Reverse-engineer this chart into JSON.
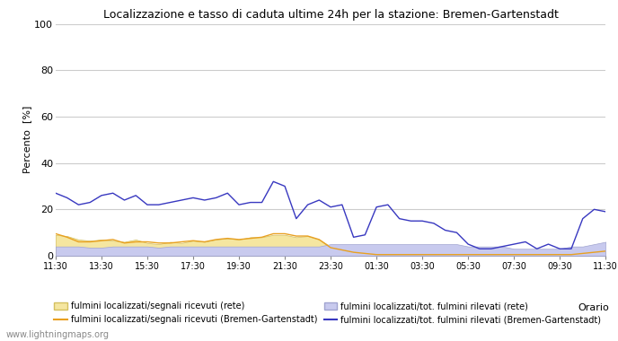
{
  "title": "Localizzazione e tasso di caduta ultime 24h per la stazione: Bremen-Gartenstadt",
  "ylabel": "Percento  [%]",
  "xlabel_right": "Orario",
  "watermark": "www.lightningmaps.org",
  "ylim": [
    0,
    100
  ],
  "yticks": [
    0,
    20,
    40,
    60,
    80,
    100
  ],
  "x_labels": [
    "11:30",
    "13:30",
    "15:30",
    "17:30",
    "19:30",
    "21:30",
    "23:30",
    "01:30",
    "03:30",
    "05:30",
    "07:30",
    "09:30",
    "11:30"
  ],
  "color_fill_rete_segnali": "#f5e6a0",
  "color_fill_rete_fulmini": "#c8caee",
  "color_line_station_segnali": "#e8a020",
  "color_line_station_fulmini": "#3838c0",
  "color_fill_rete_segnali_edge": "#d4c060",
  "color_fill_rete_fulmini_edge": "#a0a4d0",
  "legend_fill_segnali": "fulmini localizzati/segnali ricevuti (rete)",
  "legend_line_segnali": "fulmini localizzati/segnali ricevuti (Bremen-Gartenstadt)",
  "legend_fill_fulmini": "fulmini localizzati/tot. fulmini rilevati (rete)",
  "legend_line_fulmini": "fulmini localizzati/tot. fulmini rilevati (Bremen-Gartenstadt)",
  "x_values": [
    0,
    1,
    2,
    3,
    4,
    5,
    6,
    7,
    8,
    9,
    10,
    11,
    12,
    13,
    14,
    15,
    16,
    17,
    18,
    19,
    20,
    21,
    22,
    23,
    24,
    25,
    26,
    27,
    28,
    29,
    30,
    31,
    32,
    33,
    34,
    35,
    36,
    37,
    38,
    39,
    40,
    41,
    42,
    43,
    44,
    45,
    46,
    47,
    48
  ],
  "y_rete_segnali": [
    9,
    8.5,
    7,
    6.5,
    7,
    6.5,
    6,
    7,
    5.5,
    5,
    6,
    5.5,
    6.5,
    6,
    7,
    7.5,
    7,
    8,
    8,
    9,
    9,
    8,
    8.5,
    7,
    4,
    3,
    2.5,
    2,
    1.5,
    1,
    1,
    1,
    1,
    1,
    1,
    1,
    1,
    1,
    1,
    1,
    0.5,
    0.5,
    0.5,
    0.5,
    0.5,
    1,
    1.5,
    2,
    2
  ],
  "y_rete_fulmini": [
    4,
    4,
    4,
    3.5,
    3.5,
    4,
    4,
    4,
    4,
    3.5,
    4,
    4,
    4,
    4,
    4,
    4,
    4,
    4,
    4,
    4,
    4,
    4,
    4,
    4,
    5,
    5,
    5,
    5,
    5,
    5,
    5,
    5,
    5,
    5,
    5,
    5,
    4,
    4,
    4,
    4,
    3,
    3,
    3,
    3,
    3,
    4,
    4,
    5,
    6
  ],
  "y_station_segnali": [
    9.5,
    8,
    6,
    6,
    6.5,
    7,
    5.5,
    6,
    6,
    5.5,
    5.5,
    6,
    6.5,
    6,
    7,
    7.5,
    7,
    7.5,
    8,
    9.5,
    9.5,
    8.5,
    8.5,
    7,
    3.5,
    2.5,
    1.5,
    1,
    0.5,
    0.5,
    0.5,
    0.5,
    0.5,
    0.5,
    0.5,
    0.5,
    0.5,
    0.5,
    0.5,
    0.5,
    0.5,
    0.5,
    0.5,
    0.5,
    0.5,
    0.5,
    1,
    1.5,
    2
  ],
  "y_station_fulmini": [
    27,
    25,
    22,
    23,
    26,
    27,
    24,
    26,
    22,
    22,
    23,
    24,
    25,
    24,
    25,
    27,
    22,
    23,
    23,
    32,
    30,
    16,
    22,
    24,
    21,
    22,
    8,
    9,
    21,
    22,
    16,
    15,
    15,
    14,
    11,
    10,
    5,
    3,
    3,
    4,
    5,
    6,
    3,
    5,
    3,
    3,
    16,
    20,
    19
  ]
}
